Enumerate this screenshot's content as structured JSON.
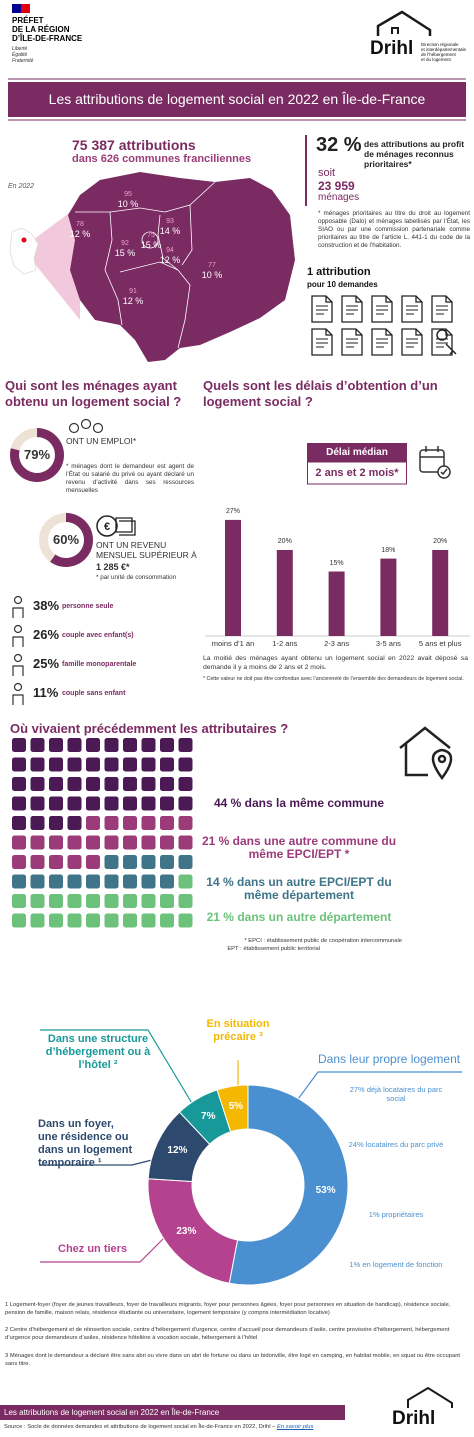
{
  "header": {
    "authority": "PRÉFET\nDE LA RÉGION\nD’ÎLE-DE-FRANCE",
    "motto": "Liberté\nÉgalité\nFraternité",
    "logo": "Drihl",
    "logo_subtitle": "Direction régionale\net interdépartementale\nde l’hébergement\net du logement"
  },
  "title": "Les attributions de logement social en 2022 en Île-de-France",
  "overview": {
    "total": "75 387 attributions",
    "communes": "dans 626 communes franciliennes",
    "year": "En 2022",
    "departments": [
      {
        "code": "95",
        "share": "10 %"
      },
      {
        "code": "78",
        "share": "12 %"
      },
      {
        "code": "93",
        "share": "14 %"
      },
      {
        "code": "75",
        "share": "15 %"
      },
      {
        "code": "92",
        "share": "15 %"
      },
      {
        "code": "94",
        "share": "12 %"
      },
      {
        "code": "77",
        "share": "10 %"
      },
      {
        "code": "91",
        "share": "12 %"
      }
    ]
  },
  "priority": {
    "share": "32 %",
    "share_text": "des attributions au profit de ménages reconnus prioritaires*",
    "prefix": "soit",
    "count": "23 959",
    "unit": "ménages",
    "note": "* ménages prioritaires au titre du droit au logement opposable (Dalo) et ménages labellisés par l’État, les SIAO ou par une commission partenariale comme prioritaires au titre de l’article L. 441-1 du code de la construction et de l’habitation."
  },
  "ratio": {
    "headline": "1 attribution",
    "detail": "pour 10 demandes"
  },
  "profile": {
    "heading": "Qui sont les ménages ayant obtenu un logement social ?",
    "employment": {
      "value": 79,
      "value_label": "79%",
      "label": "ONT UN EMPLOI*",
      "note": "* ménages dont le demandeur est agent de l’État ou salarié du privé ou ayant déclaré un revenu d’activité dans ses ressources mensuelles"
    },
    "income": {
      "value": 60,
      "value_label": "60%",
      "label": "ONT UN REVENU MENSUEL SUPÉRIEUR À",
      "amount": "1 285 €*",
      "note": "* par unité de consommation"
    },
    "households": [
      {
        "share": "38%",
        "label": "personne seule"
      },
      {
        "share": "26%",
        "label": "couple avec enfant(s)"
      },
      {
        "share": "25%",
        "label": "famille monoparentale"
      },
      {
        "share": "11%",
        "label": "couple sans enfant"
      }
    ]
  },
  "chart_data": [
    {
      "type": "bar",
      "title": "Quels sont les délais d’obtention d’un logement social ?",
      "badge": "Délai médian",
      "median": "2 ans et 2 mois*",
      "categories": [
        "moins d’1 an",
        "1-2 ans",
        "2-3 ans",
        "3-5 ans",
        "5 ans et plus"
      ],
      "values": [
        27,
        20,
        15,
        18,
        20
      ],
      "value_labels": [
        "27%",
        "20%",
        "15%",
        "18%",
        "20%"
      ],
      "color": "#7a2b62",
      "notes": [
        "La moitié des ménages ayant obtenu un logement social en 2022 avait déposé sa demande il y a moins de 2 ans et 2 mois.",
        "* Cette valeur ne doit pas être confondue avec l’ancienneté de l’ensemble des demandeurs de logement social."
      ]
    },
    {
      "type": "waffle",
      "title": "Où vivaient précédemment les attributaires ?",
      "categories": [
        "dans la même commune",
        "dans une autre commune du même EPCI/EPT *",
        "dans un autre EPCI/EPT du même département",
        "dans un autre département"
      ],
      "values": [
        44,
        21,
        14,
        21
      ],
      "value_labels": [
        "44 %",
        "21 %",
        "14 %",
        "21 %"
      ],
      "colors": [
        "#4b1a55",
        "#9b3b7a",
        "#3f7489",
        "#6cc17b"
      ],
      "notes": [
        "* EPCI : établissement public de coopération intercommunale",
        "EPT : établissement public territorial"
      ]
    },
    {
      "type": "donut",
      "categories": [
        "Dans leur propre logement",
        "Chez un tiers",
        "Dans un foyer, une résidence ou dans un logement temporaire ¹",
        "Dans une structure d’hébergement ou à l’hôtel ²",
        "En situation précaire ³"
      ],
      "values": [
        53,
        23,
        12,
        7,
        5
      ],
      "value_labels": [
        "53%",
        "23%",
        "12%",
        "7%",
        "5%"
      ],
      "colors": [
        "#4a90d0",
        "#b5428f",
        "#2d4a6e",
        "#17999a",
        "#f5b800"
      ],
      "details": [
        "27% déjà locataires du parc social",
        "24% locataires du parc privé",
        "1% propriétaires",
        "1% en logement de fonction"
      ]
    }
  ],
  "footnotes": [
    "1 Logement-foyer (foyer de jeunes travailleurs, foyer de travailleurs migrants, foyer pour personnes âgées, foyer pour personnes en situation de handicap), résidence sociale, pension de famille, maison relais, résidence étudiante ou universitaire, logement temporaire (y compris intermédiation locative)",
    "2 Centre d’hébergement et de réinsertion sociale, centre d’hébergement d’urgence, centre d’accueil pour demandeurs d’asile, centre provisoire d’hébergement, hébergement d’urgence pour demandeurs d’asiles, résidence hôtelière à vocation sociale, hébergement à l’hôtel",
    "3 Ménages dont le demandeur a déclaré être sans abri ou vivre dans un abri de fortune ou dans un bidonville, être logé en camping, en habitat mobile, en squat ou être occupant sans titre."
  ],
  "footer": {
    "title": "Les attributions de logement social en 2022 en Île-de-France",
    "source": "Source : Socle de données demandes et attributions de logement social en Île-de-France en 2022, Drihl –",
    "link": "En savoir plus",
    "logo": "Drihl"
  }
}
